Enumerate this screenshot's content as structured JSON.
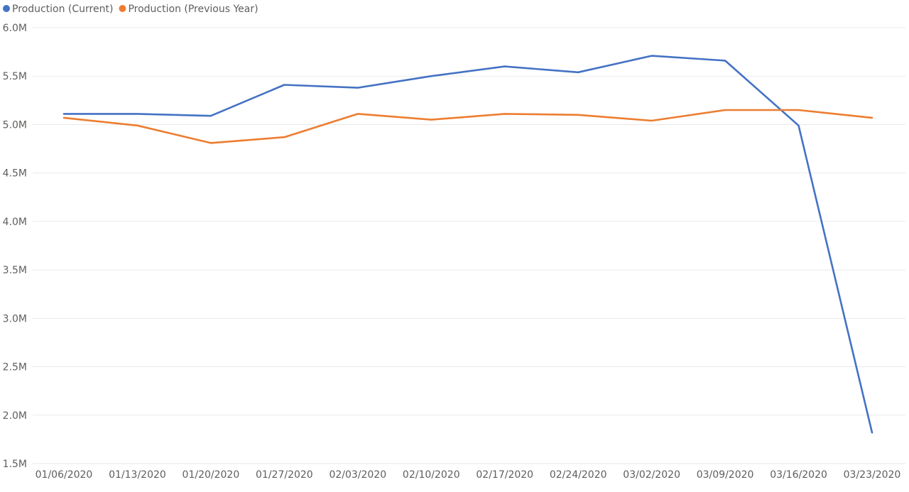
{
  "chart_data": {
    "type": "line",
    "title": "",
    "xlabel": "",
    "ylabel": "",
    "legend_position": "top-left",
    "grid": true,
    "ylim": [
      1500000,
      6000000
    ],
    "y_ticks": [
      {
        "value": 6000000,
        "label": "6.0M"
      },
      {
        "value": 5500000,
        "label": "5.5M"
      },
      {
        "value": 5000000,
        "label": "5.0M"
      },
      {
        "value": 4500000,
        "label": "4.5M"
      },
      {
        "value": 4000000,
        "label": "4.0M"
      },
      {
        "value": 3500000,
        "label": "3.5M"
      },
      {
        "value": 3000000,
        "label": "3.0M"
      },
      {
        "value": 2500000,
        "label": "2.5M"
      },
      {
        "value": 2000000,
        "label": "2.0M"
      },
      {
        "value": 1500000,
        "label": "1.5M"
      }
    ],
    "categories": [
      "01/06/2020",
      "01/13/2020",
      "01/20/2020",
      "01/27/2020",
      "02/03/2020",
      "02/10/2020",
      "02/17/2020",
      "02/24/2020",
      "03/02/2020",
      "03/09/2020",
      "03/16/2020",
      "03/23/2020"
    ],
    "series": [
      {
        "name": "Production (Current)",
        "color": "#4472c4",
        "values": [
          5110000,
          5110000,
          5090000,
          5410000,
          5380000,
          5500000,
          5600000,
          5540000,
          5710000,
          5660000,
          4990000,
          1820000
        ]
      },
      {
        "name": "Production (Previous Year)",
        "color": "#ed7d31",
        "values": [
          5070000,
          4990000,
          4810000,
          4870000,
          5110000,
          5050000,
          5110000,
          5100000,
          5040000,
          5150000,
          5150000,
          5070000
        ]
      }
    ]
  }
}
